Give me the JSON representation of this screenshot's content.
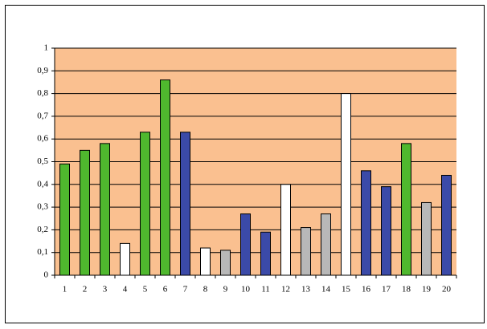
{
  "chart_data": {
    "type": "bar",
    "categories": [
      "1",
      "2",
      "3",
      "4",
      "5",
      "6",
      "7",
      "8",
      "9",
      "10",
      "11",
      "12",
      "13",
      "14",
      "15",
      "16",
      "17",
      "18",
      "19",
      "20"
    ],
    "values": [
      0.49,
      0.55,
      0.58,
      0.14,
      0.63,
      0.86,
      0.63,
      0.12,
      0.11,
      0.27,
      0.19,
      0.4,
      0.21,
      0.27,
      0.8,
      0.46,
      0.39,
      0.58,
      0.32,
      0.44
    ],
    "colors": [
      "#4fb82e",
      "#4fb82e",
      "#4fb82e",
      "#ffffff",
      "#4fb82e",
      "#4fb82e",
      "#3b4aa8",
      "#ffffff",
      "#b8b8b8",
      "#3b4aa8",
      "#3b4aa8",
      "#ffffff",
      "#b8b8b8",
      "#b8b8b8",
      "#ffffff",
      "#3b4aa8",
      "#3b4aa8",
      "#4fb82e",
      "#b8b8b8",
      "#3b4aa8"
    ],
    "ylim": [
      0,
      1
    ],
    "yticks": [
      0,
      {
        "value": 0.1,
        "label": "0,1"
      },
      {
        "value": 0.2,
        "label": "0,2"
      },
      {
        "value": 0.3,
        "label": "0,3"
      },
      {
        "value": 0.4,
        "label": "0,4"
      },
      {
        "value": 0.5,
        "label": "0,5"
      },
      {
        "value": 0.6,
        "label": "0,6"
      },
      {
        "value": 0.7,
        "label": "0,7"
      },
      {
        "value": 0.8,
        "label": "0,8"
      },
      {
        "value": 0.9,
        "label": "0,9"
      },
      1
    ],
    "grid": true,
    "plot_background": "#fac090"
  }
}
